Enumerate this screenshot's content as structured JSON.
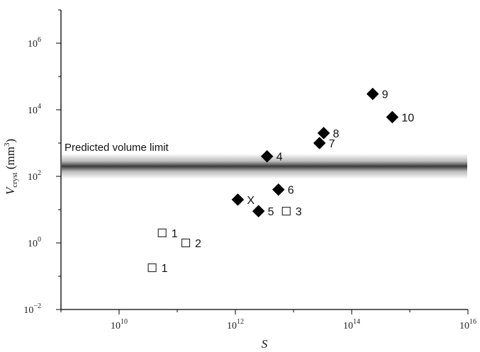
{
  "chart_data": {
    "type": "scatter",
    "title": "",
    "xlabel": "S",
    "ylabel": {
      "main": "V",
      "sub": "cryst",
      "units": " (mm",
      "units_sup": "3",
      "units_close": ")"
    },
    "x_scale": "log",
    "y_scale": "log",
    "xlim": [
      1000000000.0,
      1e+16
    ],
    "ylim": [
      0.01,
      10000000.0
    ],
    "x_ticks": [
      {
        "value": 10000000000.0,
        "base": "10",
        "exp": "10"
      },
      {
        "value": 1000000000000.0,
        "base": "10",
        "exp": "12"
      },
      {
        "value": 100000000000000.0,
        "base": "10",
        "exp": "14"
      },
      {
        "value": 1e+16,
        "base": "10",
        "exp": "16"
      }
    ],
    "y_ticks": [
      {
        "value": 0.01,
        "base": "10",
        "exp": "−2"
      },
      {
        "value": 1.0,
        "base": "10",
        "exp": "0"
      },
      {
        "value": 100.0,
        "base": "10",
        "exp": "2"
      },
      {
        "value": 10000.0,
        "base": "10",
        "exp": "4"
      },
      {
        "value": 1000000.0,
        "base": "10",
        "exp": "6"
      }
    ],
    "grid": false,
    "band": {
      "label": "Predicted volume limit",
      "center": 200,
      "color": "#3a3a3a"
    },
    "series": [
      {
        "marker": "open-square",
        "color": "#333333",
        "points": [
          {
            "x": 55000000000.0,
            "y": 2.0,
            "label": "1"
          },
          {
            "x": 140000000000.0,
            "y": 1.0,
            "label": "2"
          },
          {
            "x": 37000000000.0,
            "y": 0.18,
            "label": "1"
          },
          {
            "x": 7500000000000.0,
            "y": 9,
            "label": "3"
          }
        ]
      },
      {
        "marker": "filled-diamond",
        "color": "#000000",
        "points": [
          {
            "x": 1100000000000.0,
            "y": 20,
            "label": "X"
          },
          {
            "x": 2500000000000.0,
            "y": 9,
            "label": "5"
          },
          {
            "x": 5500000000000.0,
            "y": 40,
            "label": "6"
          },
          {
            "x": 3500000000000.0,
            "y": 400,
            "label": "4"
          },
          {
            "x": 28000000000000.0,
            "y": 1000,
            "label": "7"
          },
          {
            "x": 33000000000000.0,
            "y": 2000,
            "label": "8"
          },
          {
            "x": 230000000000000.0,
            "y": 30000,
            "label": "9"
          },
          {
            "x": 500000000000000.0,
            "y": 6000,
            "label": "10"
          }
        ]
      }
    ]
  }
}
